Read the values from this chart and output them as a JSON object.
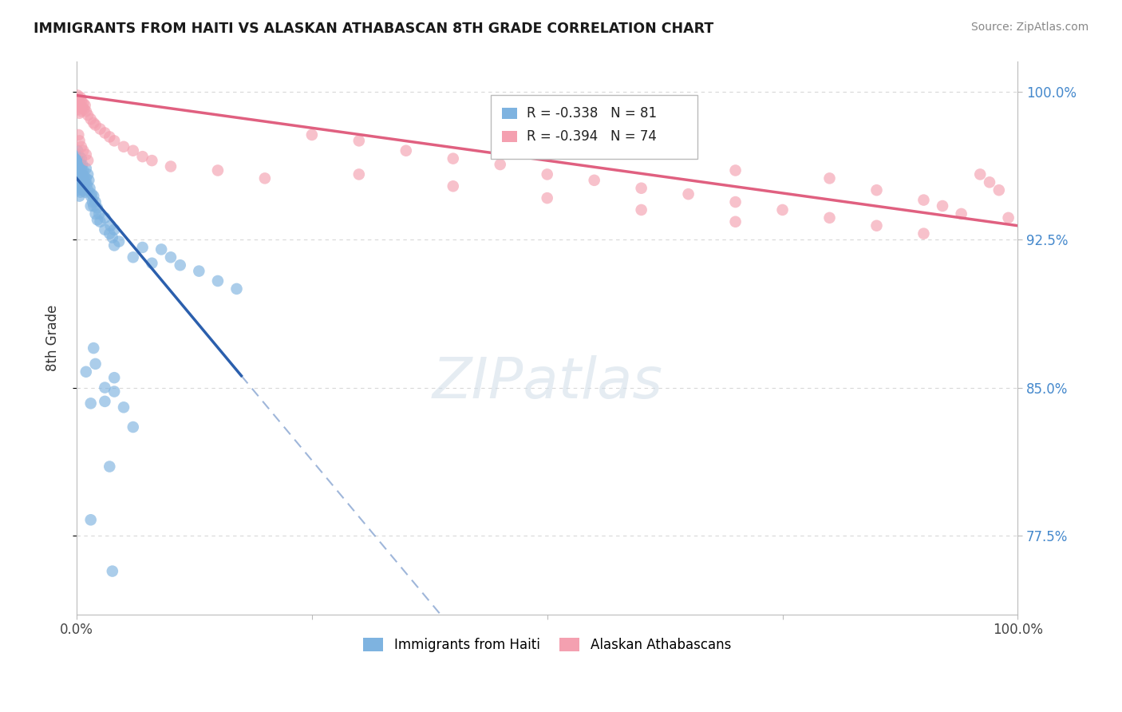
{
  "title": "IMMIGRANTS FROM HAITI VS ALASKAN ATHABASCAN 8TH GRADE CORRELATION CHART",
  "source": "Source: ZipAtlas.com",
  "ylabel": "8th Grade",
  "ytick_values": [
    0.775,
    0.85,
    0.925,
    1.0
  ],
  "ytick_labels": [
    "77.5%",
    "85.0%",
    "92.5%",
    "100.0%"
  ],
  "ymin": 0.735,
  "ymax": 1.015,
  "xmin": 0.0,
  "xmax": 1.0,
  "legend_blue_r": "-0.338",
  "legend_blue_n": "81",
  "legend_pink_r": "-0.394",
  "legend_pink_n": "74",
  "blue_color": "#7eb3e0",
  "pink_color": "#f4a0b0",
  "blue_line_color": "#2b5fad",
  "pink_line_color": "#e06080",
  "blue_line_solid_end": 0.175,
  "background_color": "#ffffff",
  "grid_color": "#d8d8d8"
}
